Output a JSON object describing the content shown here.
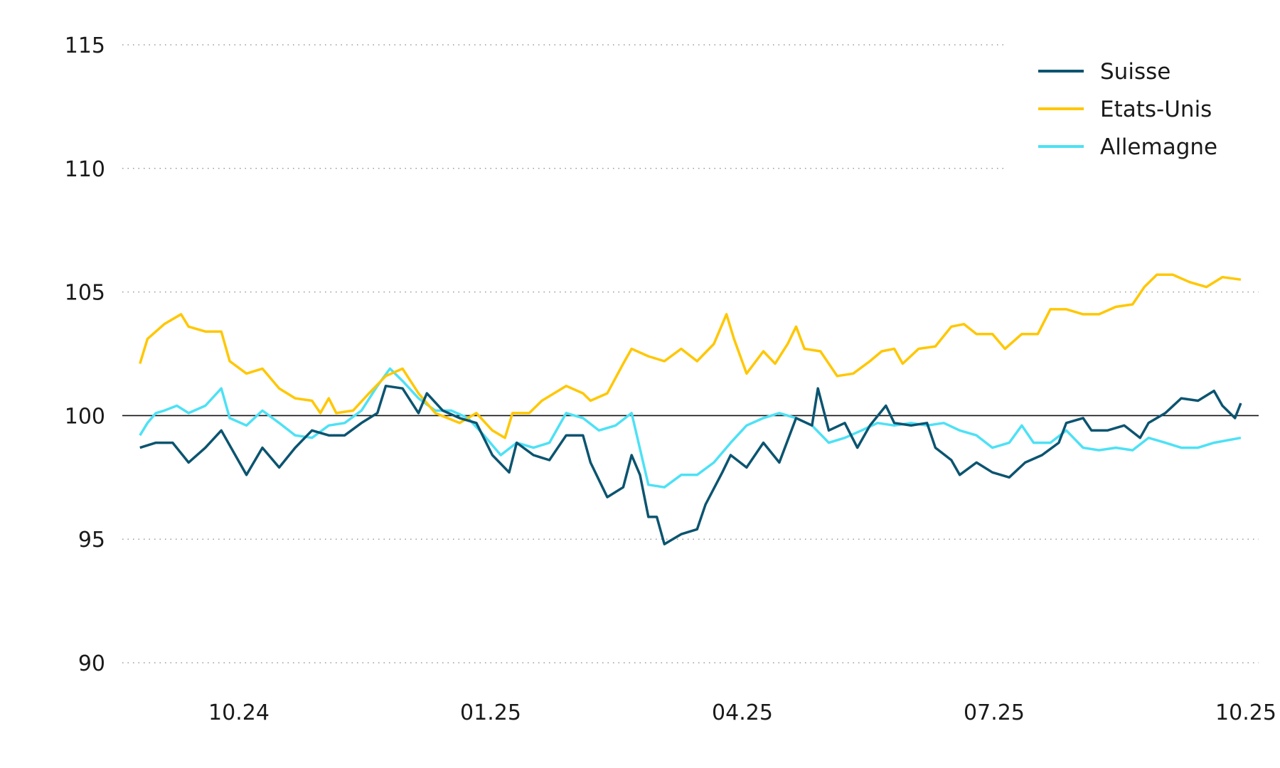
{
  "chart_data": {
    "type": "line",
    "title": "",
    "xlabel": "",
    "ylabel": "",
    "x_unit": "months since 10.24",
    "ylim": [
      90,
      115
    ],
    "xlim": [
      -1.18,
      11.94
    ],
    "yticks": [
      90,
      95,
      100,
      105,
      110,
      115
    ],
    "ytick_labels": [
      "90",
      "95",
      "100",
      "105",
      "110",
      "115"
    ],
    "xticks": [
      0,
      3,
      6,
      9,
      12
    ],
    "xtick_labels": [
      "10.24",
      "01.25",
      "04.25",
      "07.25",
      "10.25"
    ],
    "reference_line": 100,
    "grid": true,
    "legend_position": "top-right",
    "series": [
      {
        "name": "Suisse",
        "color": "#0b5470",
        "points": [
          [
            -1.18,
            98.7
          ],
          [
            -0.99,
            98.9
          ],
          [
            -0.79,
            98.9
          ],
          [
            -0.6,
            98.1
          ],
          [
            -0.4,
            98.7
          ],
          [
            -0.21,
            99.4
          ],
          [
            -0.01,
            98.2
          ],
          [
            0.09,
            97.6
          ],
          [
            0.28,
            98.7
          ],
          [
            0.48,
            97.9
          ],
          [
            0.67,
            98.7
          ],
          [
            0.87,
            99.4
          ],
          [
            1.07,
            99.2
          ],
          [
            1.26,
            99.2
          ],
          [
            1.46,
            99.7
          ],
          [
            1.65,
            100.1
          ],
          [
            1.75,
            101.2
          ],
          [
            1.95,
            101.1
          ],
          [
            2.14,
            100.1
          ],
          [
            2.24,
            100.9
          ],
          [
            2.43,
            100.2
          ],
          [
            2.63,
            99.9
          ],
          [
            2.83,
            99.7
          ],
          [
            3.02,
            98.4
          ],
          [
            3.22,
            97.7
          ],
          [
            3.31,
            98.9
          ],
          [
            3.51,
            98.4
          ],
          [
            3.7,
            98.2
          ],
          [
            3.9,
            99.2
          ],
          [
            4.1,
            99.2
          ],
          [
            4.19,
            98.1
          ],
          [
            4.39,
            96.7
          ],
          [
            4.58,
            97.1
          ],
          [
            4.68,
            98.4
          ],
          [
            4.78,
            97.6
          ],
          [
            4.88,
            95.9
          ],
          [
            4.98,
            95.9
          ],
          [
            5.07,
            94.8
          ],
          [
            5.27,
            95.2
          ],
          [
            5.46,
            95.4
          ],
          [
            5.56,
            96.4
          ],
          [
            5.76,
            97.7
          ],
          [
            5.86,
            98.4
          ],
          [
            6.05,
            97.9
          ],
          [
            6.25,
            98.9
          ],
          [
            6.44,
            98.1
          ],
          [
            6.64,
            99.9
          ],
          [
            6.83,
            99.6
          ],
          [
            6.9,
            101.1
          ],
          [
            7.03,
            99.4
          ],
          [
            7.22,
            99.7
          ],
          [
            7.37,
            98.7
          ],
          [
            7.52,
            99.6
          ],
          [
            7.71,
            100.4
          ],
          [
            7.81,
            99.7
          ],
          [
            8.01,
            99.6
          ],
          [
            8.2,
            99.7
          ],
          [
            8.3,
            98.7
          ],
          [
            8.49,
            98.2
          ],
          [
            8.59,
            97.6
          ],
          [
            8.79,
            98.1
          ],
          [
            8.98,
            97.7
          ],
          [
            9.18,
            97.5
          ],
          [
            9.37,
            98.1
          ],
          [
            9.57,
            98.4
          ],
          [
            9.77,
            98.9
          ],
          [
            9.86,
            99.7
          ],
          [
            10.06,
            99.9
          ],
          [
            10.16,
            99.4
          ],
          [
            10.35,
            99.4
          ],
          [
            10.55,
            99.6
          ],
          [
            10.74,
            99.1
          ],
          [
            10.84,
            99.7
          ],
          [
            11.04,
            100.1
          ],
          [
            11.23,
            100.7
          ],
          [
            11.43,
            100.6
          ],
          [
            11.62,
            101.0
          ],
          [
            11.72,
            100.4
          ],
          [
            11.87,
            99.9
          ],
          [
            11.94,
            100.5
          ]
        ]
      },
      {
        "name": "Etats-Unis",
        "color": "#ffc700",
        "points": [
          [
            -1.18,
            102.1
          ],
          [
            -1.09,
            103.1
          ],
          [
            -0.99,
            103.4
          ],
          [
            -0.89,
            103.7
          ],
          [
            -0.69,
            104.1
          ],
          [
            -0.6,
            103.6
          ],
          [
            -0.4,
            103.4
          ],
          [
            -0.21,
            103.4
          ],
          [
            -0.11,
            102.2
          ],
          [
            0.09,
            101.7
          ],
          [
            0.28,
            101.9
          ],
          [
            0.48,
            101.1
          ],
          [
            0.67,
            100.7
          ],
          [
            0.87,
            100.6
          ],
          [
            0.97,
            100.1
          ],
          [
            1.07,
            100.7
          ],
          [
            1.16,
            100.1
          ],
          [
            1.36,
            100.2
          ],
          [
            1.55,
            100.9
          ],
          [
            1.75,
            101.6
          ],
          [
            1.95,
            101.9
          ],
          [
            2.14,
            100.9
          ],
          [
            2.34,
            100.1
          ],
          [
            2.63,
            99.7
          ],
          [
            2.83,
            100.1
          ],
          [
            3.02,
            99.4
          ],
          [
            3.17,
            99.1
          ],
          [
            3.26,
            100.1
          ],
          [
            3.46,
            100.1
          ],
          [
            3.61,
            100.6
          ],
          [
            3.9,
            101.2
          ],
          [
            4.1,
            100.9
          ],
          [
            4.19,
            100.6
          ],
          [
            4.39,
            100.9
          ],
          [
            4.58,
            102.1
          ],
          [
            4.68,
            102.7
          ],
          [
            4.88,
            102.4
          ],
          [
            5.07,
            102.2
          ],
          [
            5.27,
            102.7
          ],
          [
            5.46,
            102.2
          ],
          [
            5.66,
            102.9
          ],
          [
            5.81,
            104.1
          ],
          [
            5.9,
            103.1
          ],
          [
            6.05,
            101.7
          ],
          [
            6.25,
            102.6
          ],
          [
            6.39,
            102.1
          ],
          [
            6.54,
            102.9
          ],
          [
            6.64,
            103.6
          ],
          [
            6.74,
            102.7
          ],
          [
            6.93,
            102.6
          ],
          [
            7.13,
            101.6
          ],
          [
            7.32,
            101.7
          ],
          [
            7.52,
            102.2
          ],
          [
            7.66,
            102.6
          ],
          [
            7.81,
            102.7
          ],
          [
            7.91,
            102.1
          ],
          [
            8.1,
            102.7
          ],
          [
            8.3,
            102.8
          ],
          [
            8.49,
            103.6
          ],
          [
            8.64,
            103.7
          ],
          [
            8.79,
            103.3
          ],
          [
            8.98,
            103.3
          ],
          [
            9.13,
            102.7
          ],
          [
            9.33,
            103.3
          ],
          [
            9.52,
            103.3
          ],
          [
            9.67,
            104.3
          ],
          [
            9.86,
            104.3
          ],
          [
            10.06,
            104.1
          ],
          [
            10.25,
            104.1
          ],
          [
            10.45,
            104.4
          ],
          [
            10.65,
            104.5
          ],
          [
            10.79,
            105.2
          ],
          [
            10.94,
            105.7
          ],
          [
            11.13,
            105.7
          ],
          [
            11.33,
            105.4
          ],
          [
            11.53,
            105.2
          ],
          [
            11.72,
            105.6
          ],
          [
            11.94,
            105.5
          ]
        ]
      },
      {
        "name": "Allemagne",
        "color": "#4de1f5",
        "points": [
          [
            -1.18,
            99.2
          ],
          [
            -1.09,
            99.7
          ],
          [
            -0.99,
            100.1
          ],
          [
            -0.89,
            100.2
          ],
          [
            -0.74,
            100.4
          ],
          [
            -0.6,
            100.1
          ],
          [
            -0.4,
            100.4
          ],
          [
            -0.21,
            101.1
          ],
          [
            -0.11,
            99.9
          ],
          [
            0.09,
            99.6
          ],
          [
            0.28,
            100.2
          ],
          [
            0.48,
            99.7
          ],
          [
            0.67,
            99.2
          ],
          [
            0.87,
            99.1
          ],
          [
            1.07,
            99.6
          ],
          [
            1.26,
            99.7
          ],
          [
            1.46,
            100.2
          ],
          [
            1.65,
            101.2
          ],
          [
            1.8,
            101.9
          ],
          [
            1.95,
            101.4
          ],
          [
            2.14,
            100.7
          ],
          [
            2.34,
            100.2
          ],
          [
            2.53,
            100.2
          ],
          [
            2.73,
            99.9
          ],
          [
            2.92,
            99.2
          ],
          [
            3.12,
            98.4
          ],
          [
            3.31,
            98.9
          ],
          [
            3.51,
            98.7
          ],
          [
            3.7,
            98.9
          ],
          [
            3.9,
            100.1
          ],
          [
            4.1,
            99.9
          ],
          [
            4.29,
            99.4
          ],
          [
            4.49,
            99.6
          ],
          [
            4.68,
            100.1
          ],
          [
            4.88,
            97.2
          ],
          [
            5.07,
            97.1
          ],
          [
            5.27,
            97.6
          ],
          [
            5.46,
            97.6
          ],
          [
            5.66,
            98.1
          ],
          [
            5.86,
            98.9
          ],
          [
            6.05,
            99.6
          ],
          [
            6.25,
            99.9
          ],
          [
            6.44,
            100.1
          ],
          [
            6.64,
            99.9
          ],
          [
            6.83,
            99.6
          ],
          [
            7.03,
            98.9
          ],
          [
            7.22,
            99.1
          ],
          [
            7.42,
            99.4
          ],
          [
            7.61,
            99.7
          ],
          [
            7.81,
            99.6
          ],
          [
            8.01,
            99.7
          ],
          [
            8.2,
            99.6
          ],
          [
            8.4,
            99.7
          ],
          [
            8.59,
            99.4
          ],
          [
            8.79,
            99.2
          ],
          [
            8.98,
            98.7
          ],
          [
            9.18,
            98.9
          ],
          [
            9.33,
            99.6
          ],
          [
            9.47,
            98.9
          ],
          [
            9.67,
            98.9
          ],
          [
            9.86,
            99.4
          ],
          [
            10.06,
            98.7
          ],
          [
            10.25,
            98.6
          ],
          [
            10.45,
            98.7
          ],
          [
            10.65,
            98.6
          ],
          [
            10.84,
            99.1
          ],
          [
            11.04,
            98.9
          ],
          [
            11.23,
            98.7
          ],
          [
            11.43,
            98.7
          ],
          [
            11.62,
            98.9
          ],
          [
            11.94,
            99.1
          ]
        ]
      }
    ]
  }
}
